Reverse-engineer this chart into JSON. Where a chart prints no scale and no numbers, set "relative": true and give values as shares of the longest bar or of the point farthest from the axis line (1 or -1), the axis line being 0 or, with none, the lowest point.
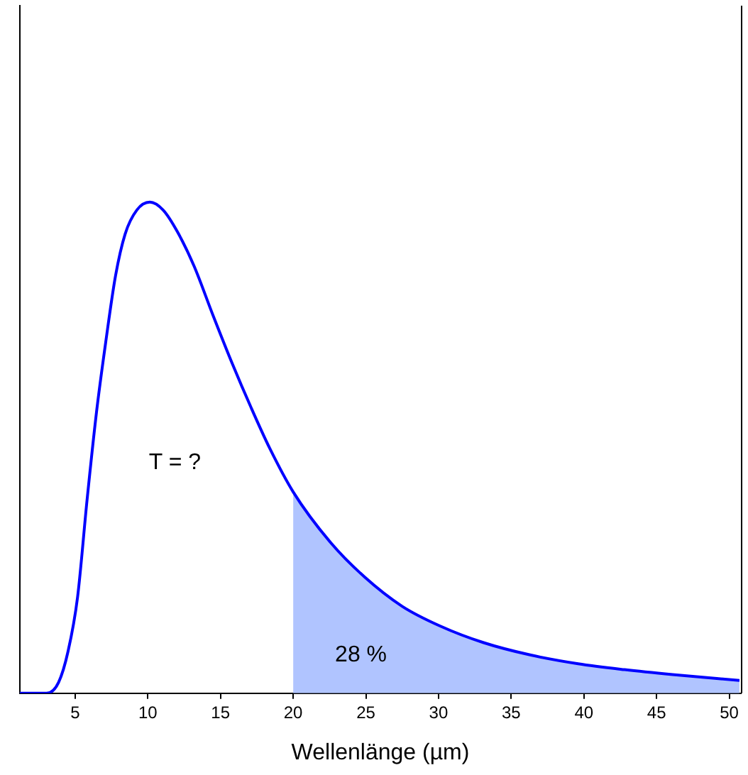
{
  "chart_data": {
    "type": "line",
    "relative": true,
    "xlabel": "Wellenlänge (µm)",
    "xlim": [
      1.2,
      50.8
    ],
    "xticks": [
      5,
      10,
      15,
      20,
      25,
      30,
      35,
      40,
      45,
      50
    ],
    "grid": false,
    "legend": false,
    "tick_labels": "x",
    "marker": "none",
    "line_style": "solid",
    "series": [
      {
        "type": "area",
        "color": "#b0c4ff",
        "x": [
          20,
          22.6,
          24.9,
          27.5,
          30.1,
          33.1,
          36.3,
          39.6,
          42.8,
          46.1,
          50.7
        ],
        "values": [
          0.41,
          0.306,
          0.237,
          0.177,
          0.137,
          0.103,
          0.078,
          0.06,
          0.048,
          0.038,
          0.026
        ]
      },
      {
        "color": "#0000ff",
        "x": [
          1.2,
          3.04,
          3.86,
          4.52,
          5.17,
          5.82,
          6.47,
          7.13,
          7.78,
          8.44,
          9.25,
          10.14,
          11.05,
          12.03,
          13.18,
          14.48,
          15.8,
          17.1,
          18.4,
          20,
          22.6,
          24.9,
          27.5,
          30.1,
          33.1,
          36.3,
          39.6,
          42.8,
          46.1,
          50.7
        ],
        "values": [
          0,
          0,
          0.022,
          0.086,
          0.196,
          0.393,
          0.572,
          0.72,
          0.85,
          0.935,
          0.984,
          1,
          0.984,
          0.94,
          0.87,
          0.77,
          0.672,
          0.582,
          0.498,
          0.41,
          0.306,
          0.237,
          0.177,
          0.137,
          0.103,
          0.078,
          0.06,
          0.048,
          0.038,
          0.026
        ]
      }
    ],
    "annotations": [
      "T = ?",
      "28 %"
    ]
  }
}
